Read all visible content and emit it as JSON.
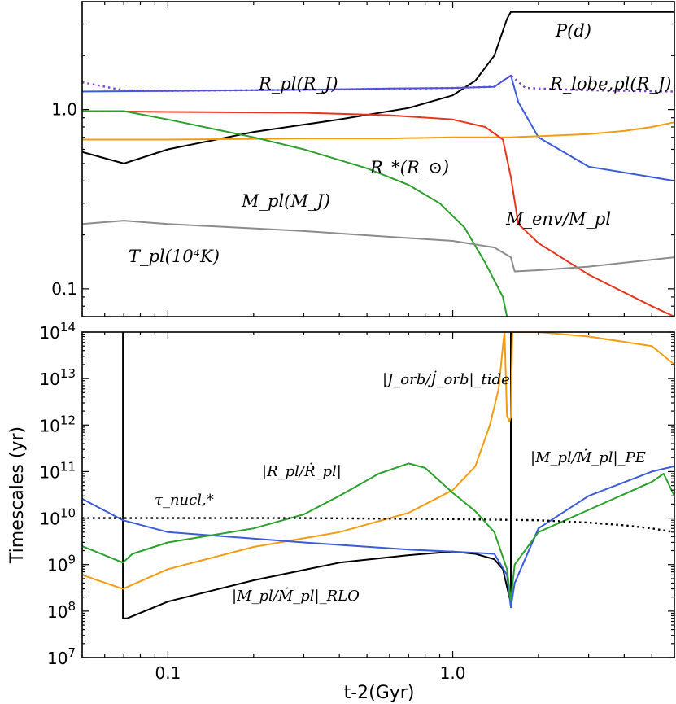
{
  "chart_data": [
    {
      "type": "line",
      "panel": "top",
      "xscale": "log",
      "yscale": "log",
      "xlim": [
        0.05,
        6.0
      ],
      "ylim": [
        0.07,
        4.0
      ],
      "yticks": [
        0.1,
        1.0
      ],
      "ytick_labels": [
        "0.1",
        "1.0"
      ],
      "xlabel": "",
      "ylabel": "",
      "annotations": {
        "P": "P(d)",
        "Rpl": "R_pl(R_J)",
        "Rlobe": "R_lobe,pl(R_J)",
        "Rstar": "R_*(R_⊙)",
        "Mpl": "M_pl(M_J)",
        "Menv": "M_env/M_pl",
        "Tpl": "T_pl(10⁴K)"
      },
      "series": [
        {
          "name": "P(d)",
          "color": "#000000",
          "style": "solid",
          "x": [
            0.05,
            0.07,
            0.1,
            0.2,
            0.4,
            0.7,
            1.0,
            1.2,
            1.4,
            1.55,
            1.6,
            6.0
          ],
          "y": [
            0.58,
            0.5,
            0.6,
            0.75,
            0.88,
            1.02,
            1.2,
            1.45,
            2.0,
            3.2,
            3.5,
            3.5
          ]
        },
        {
          "name": "R_pl(R_J)",
          "color": "#3b5bdb",
          "style": "solid",
          "x": [
            0.05,
            0.1,
            0.3,
            0.6,
            1.0,
            1.4,
            1.6,
            1.7,
            2.0,
            3.0,
            5.0,
            6.0
          ],
          "y": [
            1.26,
            1.27,
            1.29,
            1.31,
            1.32,
            1.34,
            1.55,
            1.1,
            0.7,
            0.48,
            0.42,
            0.4
          ]
        },
        {
          "name": "R_lobe,pl(R_J)",
          "color": "#7a3fcf",
          "style": "dotted",
          "x": [
            0.05,
            0.07,
            0.1,
            0.3,
            0.7,
            1.0,
            1.4,
            1.6,
            1.8,
            3.0,
            6.0
          ],
          "y": [
            1.42,
            1.28,
            1.27,
            1.29,
            1.31,
            1.32,
            1.34,
            1.55,
            1.32,
            1.28,
            1.26
          ]
        },
        {
          "name": "R_*(R_⊙)",
          "color": "#f39c12",
          "style": "solid",
          "x": [
            0.05,
            0.1,
            0.3,
            0.6,
            1.0,
            1.6,
            2.0,
            3.0,
            4.0,
            5.0,
            6.0
          ],
          "y": [
            0.68,
            0.68,
            0.69,
            0.69,
            0.7,
            0.7,
            0.71,
            0.73,
            0.76,
            0.8,
            0.85
          ]
        },
        {
          "name": "M_env/M_pl",
          "color": "#e8341c",
          "style": "solid",
          "x": [
            0.05,
            0.1,
            0.3,
            0.6,
            1.0,
            1.3,
            1.5,
            1.6,
            1.7,
            2.0,
            3.0,
            5.0,
            6.0
          ],
          "y": [
            0.98,
            0.97,
            0.96,
            0.93,
            0.88,
            0.8,
            0.68,
            0.42,
            0.23,
            0.18,
            0.12,
            0.08,
            0.07
          ]
        },
        {
          "name": "M_pl(M_J)",
          "color": "#2ca02c",
          "style": "solid",
          "x": [
            0.05,
            0.07,
            0.1,
            0.2,
            0.3,
            0.5,
            0.7,
            0.9,
            1.1,
            1.3,
            1.5,
            1.55
          ],
          "y": [
            0.98,
            0.98,
            0.88,
            0.7,
            0.6,
            0.47,
            0.38,
            0.3,
            0.22,
            0.14,
            0.09,
            0.07
          ]
        },
        {
          "name": "T_pl(10⁴K)",
          "color": "#8c8c8c",
          "style": "solid",
          "x": [
            0.05,
            0.07,
            0.1,
            0.3,
            0.6,
            1.0,
            1.4,
            1.6,
            1.65,
            2.0,
            3.0,
            6.0
          ],
          "y": [
            0.23,
            0.24,
            0.23,
            0.21,
            0.195,
            0.185,
            0.17,
            0.15,
            0.125,
            0.127,
            0.133,
            0.15
          ]
        }
      ]
    },
    {
      "type": "line",
      "panel": "bottom",
      "xscale": "log",
      "yscale": "log",
      "xlim": [
        0.05,
        6.0
      ],
      "ylim": [
        10000000.0,
        100000000000000.0
      ],
      "ylabel": "Timescales (yr)",
      "xlabel": "t-2(Gyr)",
      "xticks": [
        0.1,
        1.0
      ],
      "xtick_labels": [
        "0.1",
        "1.0"
      ],
      "yticks": [
        10000000.0,
        100000000.0,
        1000000000.0,
        10000000000.0,
        100000000000.0,
        1000000000000.0,
        10000000000000.0,
        100000000000000.0
      ],
      "ytick_mantissa": [
        "10",
        "10",
        "10",
        "10",
        "10",
        "10",
        "10",
        "10"
      ],
      "ytick_exponents": [
        "7",
        "8",
        "9",
        "10",
        "11",
        "12",
        "13",
        "14"
      ],
      "annotations": {
        "J": "|J_orb/J̇_orb|_tide",
        "MPE": "|M_pl/Ṁ_pl|_PE",
        "Rdot": "|R_pl/Ṙ_pl|",
        "tau": "τ_nucl,*",
        "MRLO": "|M_pl/Ṁ_pl|_RLO"
      },
      "series": [
        {
          "name": "|M_pl/Ṁ_pl|_RLO",
          "color": "#000000",
          "style": "solid",
          "x": [
            0.0695,
            0.0695,
            0.072,
            0.1,
            0.2,
            0.4,
            0.7,
            1.0,
            1.2,
            1.4,
            1.5,
            1.58,
            1.6,
            1.6
          ],
          "y": [
            100000000000000.0,
            70000000.0,
            70000000.0,
            160000000.0,
            460000000.0,
            1100000000.0,
            1600000000.0,
            1900000000.0,
            1700000000.0,
            1300000000.0,
            800000000.0,
            200000000.0,
            160000000.0,
            100000000000000.0
          ]
        },
        {
          "name": "|J_orb/J̇_orb|_tide",
          "color": "#f39c12",
          "style": "solid",
          "x": [
            0.05,
            0.0695,
            0.1,
            0.2,
            0.4,
            0.7,
            1.0,
            1.2,
            1.35,
            1.45,
            1.5,
            1.52,
            1.55,
            1.58,
            1.6,
            1.62,
            1.65,
            2.0,
            3.0,
            5.0,
            6.0
          ],
          "y": [
            600000000.0,
            300000000.0,
            800000000.0,
            2400000000.0,
            5000000000.0,
            13000000000.0,
            40000000000.0,
            130000000000.0,
            1000000000000.0,
            6000000000000.0,
            50000000000000.0,
            100000000000000.0,
            1600000000000.0,
            1200000000000.0,
            1500000000000.0,
            100000000000000.0,
            100000000000000.0,
            100000000000000.0,
            80000000000000.0,
            50000000000000.0,
            20000000000000.0
          ]
        },
        {
          "name": "|M_pl/Ṁ_pl|_PE",
          "color": "#3b5bdb",
          "style": "solid",
          "x": [
            0.05,
            0.0695,
            0.1,
            0.3,
            0.7,
            1.0,
            1.4,
            1.55,
            1.6,
            1.65,
            2.0,
            3.0,
            5.0,
            6.0
          ],
          "y": [
            26000000000.0,
            9000000000.0,
            5000000000.0,
            3000000000.0,
            2100000000.0,
            1900000000.0,
            1700000000.0,
            600000000.0,
            120000000.0,
            400000000.0,
            6000000000.0,
            30000000000.0,
            100000000000.0,
            130000000000.0
          ]
        },
        {
          "name": "|R_pl/Ṙ_pl|",
          "color": "#2ca02c",
          "style": "solid",
          "x": [
            0.05,
            0.0695,
            0.075,
            0.1,
            0.2,
            0.3,
            0.4,
            0.55,
            0.7,
            0.8,
            1.0,
            1.2,
            1.4,
            1.55,
            1.6,
            1.65,
            2.0,
            3.0,
            5.0,
            5.5,
            6.0
          ],
          "y": [
            2500000000.0,
            1100000000.0,
            1700000000.0,
            3000000000.0,
            6000000000.0,
            12000000000.0,
            30000000000.0,
            90000000000.0,
            150000000000.0,
            120000000000.0,
            35000000000.0,
            14000000000.0,
            5000000000.0,
            800000000.0,
            170000000.0,
            1000000000.0,
            5000000000.0,
            15000000000.0,
            60000000000.0,
            90000000000.0,
            30000000000.0
          ]
        },
        {
          "name": "τ_nucl,*",
          "color": "#000000",
          "style": "dotted",
          "x": [
            0.05,
            0.1,
            0.3,
            1.0,
            2.0,
            3.0,
            4.0,
            5.0,
            6.0
          ],
          "y": [
            10000000000.0,
            10000000000.0,
            10000000000.0,
            9500000000.0,
            9000000000.0,
            8000000000.0,
            7000000000.0,
            6000000000.0,
            5000000000.0
          ]
        }
      ]
    }
  ]
}
